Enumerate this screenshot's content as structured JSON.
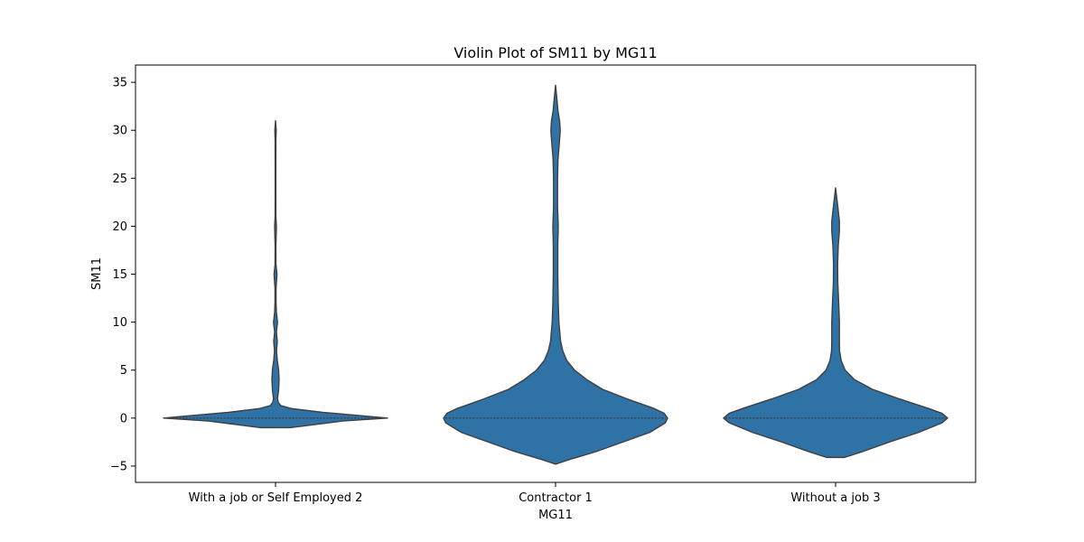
{
  "chart_data": {
    "type": "violin",
    "title": "Violin Plot of SM11 by MG11",
    "xlabel": "MG11",
    "ylabel": "SM11",
    "ylim": [
      -6.7,
      36.8
    ],
    "yticks": [
      -5,
      0,
      5,
      10,
      15,
      20,
      25,
      30,
      35
    ],
    "ytick_labels": [
      "−5",
      "0",
      "5",
      "10",
      "15",
      "20",
      "25",
      "30",
      "35"
    ],
    "grid": false,
    "color": "#2e72a6",
    "edge_color": "#3f3f3f",
    "categories": [
      "With a job or Self Employed 2",
      "Contractor 1",
      "Without a job 3"
    ],
    "series": [
      {
        "category": "With a job or Self Employed 2",
        "median": 0,
        "range": [
          -1.0,
          31.0
        ],
        "profile": [
          [
            -1.0,
            0.13
          ],
          [
            -0.7,
            0.33
          ],
          [
            -0.3,
            0.6
          ],
          [
            0.0,
            1.0
          ],
          [
            0.3,
            0.72
          ],
          [
            0.6,
            0.42
          ],
          [
            1.0,
            0.14
          ],
          [
            1.3,
            0.048
          ],
          [
            1.6,
            0.026
          ],
          [
            2.0,
            0.018
          ],
          [
            3.0,
            0.028
          ],
          [
            4.0,
            0.032
          ],
          [
            5.0,
            0.028
          ],
          [
            6.0,
            0.016
          ],
          [
            7.0,
            0.009
          ],
          [
            8.0,
            0.016
          ],
          [
            9.0,
            0.008
          ],
          [
            10.0,
            0.018
          ],
          [
            11.0,
            0.008
          ],
          [
            12.0,
            0.0048
          ],
          [
            13.5,
            0.0045
          ],
          [
            15.0,
            0.013
          ],
          [
            16.0,
            0.004
          ],
          [
            18.0,
            0.0035
          ],
          [
            20.0,
            0.008
          ],
          [
            21.0,
            0.0035
          ],
          [
            25.0,
            0.003
          ],
          [
            29.0,
            0.0035
          ],
          [
            30.0,
            0.006
          ],
          [
            31.0,
            0.0
          ]
        ]
      },
      {
        "category": "Contractor 1",
        "median": 0,
        "range": [
          -4.8,
          34.7
        ],
        "profile": [
          [
            -4.8,
            0.0
          ],
          [
            -4.3,
            0.13
          ],
          [
            -3.5,
            0.36
          ],
          [
            -2.5,
            0.6
          ],
          [
            -1.5,
            0.84
          ],
          [
            -0.5,
            0.98
          ],
          [
            0.0,
            1.0
          ],
          [
            0.5,
            0.97
          ],
          [
            1.0,
            0.88
          ],
          [
            2.0,
            0.64
          ],
          [
            3.0,
            0.42
          ],
          [
            4.0,
            0.28
          ],
          [
            5.0,
            0.17
          ],
          [
            6.0,
            0.1
          ],
          [
            7.0,
            0.065
          ],
          [
            8.0,
            0.045
          ],
          [
            10.0,
            0.03
          ],
          [
            12.0,
            0.024
          ],
          [
            15.0,
            0.02
          ],
          [
            18.0,
            0.02
          ],
          [
            20.0,
            0.024
          ],
          [
            22.0,
            0.018
          ],
          [
            25.0,
            0.018
          ],
          [
            27.0,
            0.022
          ],
          [
            29.0,
            0.036
          ],
          [
            30.0,
            0.042
          ],
          [
            31.0,
            0.036
          ],
          [
            32.0,
            0.022
          ],
          [
            33.5,
            0.01
          ],
          [
            34.7,
            0.0
          ]
        ]
      },
      {
        "category": "Without a job 3",
        "median": 0,
        "range": [
          -4.1,
          24.0
        ],
        "profile": [
          [
            -4.1,
            0.08
          ],
          [
            -3.5,
            0.24
          ],
          [
            -2.5,
            0.48
          ],
          [
            -1.5,
            0.74
          ],
          [
            -0.5,
            0.95
          ],
          [
            0.0,
            1.0
          ],
          [
            0.5,
            0.95
          ],
          [
            1.0,
            0.83
          ],
          [
            2.0,
            0.57
          ],
          [
            3.0,
            0.33
          ],
          [
            4.0,
            0.17
          ],
          [
            5.0,
            0.085
          ],
          [
            6.0,
            0.05
          ],
          [
            7.0,
            0.036
          ],
          [
            8.0,
            0.034
          ],
          [
            10.0,
            0.034
          ],
          [
            12.0,
            0.028
          ],
          [
            14.0,
            0.02
          ],
          [
            16.0,
            0.018
          ],
          [
            18.0,
            0.024
          ],
          [
            19.5,
            0.034
          ],
          [
            20.5,
            0.034
          ],
          [
            22.0,
            0.02
          ],
          [
            23.0,
            0.01
          ],
          [
            24.0,
            0.0
          ]
        ]
      }
    ]
  }
}
